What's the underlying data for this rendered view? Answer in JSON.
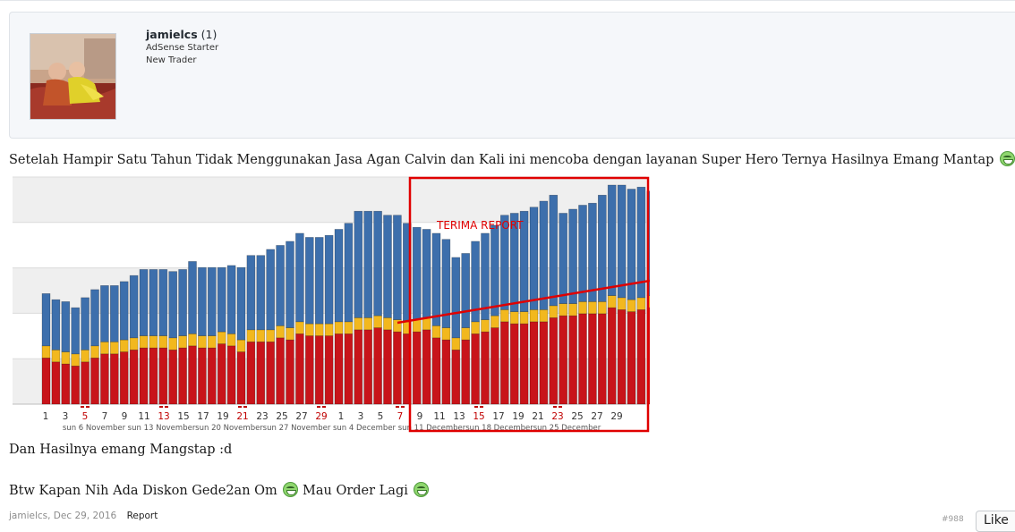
{
  "author": {
    "username": "jamielcs",
    "post_count": "(1)",
    "titles": [
      "AdSense Starter",
      "New Trader"
    ]
  },
  "message": {
    "line1": "Setelah Hampir Satu Tahun Tidak Menggunakan Jasa Agan Calvin dan Kali ini mencoba dengan layanan Super Hero Ternya Hasilnya Emang Mantap",
    "line2": "Dan Hasilnya emang Mangstap :d",
    "line3_a": "Btw Kapan Nih Ada Diskon Gede2an Om",
    "line3_b": "Mau Order Lagi",
    "emoji_icon": "grin-emoji-icon"
  },
  "chart_data": {
    "type": "bar",
    "stacked": true,
    "annotation": "TERIMA REPORT",
    "x_tick_labels": [
      "1",
      "3",
      "5",
      "7",
      "9",
      "11",
      "13",
      "15",
      "17",
      "19",
      "21",
      "23",
      "25",
      "27",
      "29",
      "1",
      "3",
      "5",
      "7",
      "9",
      "11",
      "13",
      "15",
      "17",
      "19",
      "21",
      "23",
      "25",
      "27",
      "29"
    ],
    "red_tick_labels": [
      "5",
      "13",
      "19",
      "27",
      "3",
      "11",
      "17",
      "25"
    ],
    "week_labels": [
      "sun 6 November",
      "sun 13 November",
      "sun 20 November",
      "sun 27 November",
      "sun 4 December",
      "sun 11 December",
      "sun 18 December",
      "sun 25 December"
    ],
    "series": [
      {
        "color": "#c8141a",
        "values": [
          23,
          21,
          20,
          19,
          21,
          23,
          25,
          25,
          26,
          27,
          28,
          28,
          28,
          27,
          28,
          29,
          28,
          28,
          30,
          29,
          26,
          31,
          31,
          31,
          33,
          32,
          35,
          34,
          34,
          34,
          35,
          35,
          37,
          37,
          38,
          37,
          36,
          35,
          36,
          37,
          33,
          32,
          27,
          32,
          35,
          36,
          38,
          41,
          40,
          40,
          41,
          41,
          43,
          44,
          44,
          45,
          45,
          45,
          48,
          47,
          46,
          47,
          48,
          48,
          47,
          46,
          47,
          48,
          47,
          47,
          48,
          52
        ]
      },
      {
        "color": "#f2b81e",
        "values": [
          6,
          6,
          6,
          6,
          6,
          6,
          6,
          6,
          6,
          6,
          6,
          6,
          6,
          6,
          6,
          6,
          6,
          6,
          6,
          6,
          6,
          6,
          6,
          6,
          6,
          6,
          6,
          6,
          6,
          6,
          6,
          6,
          6,
          6,
          6,
          6,
          6,
          6,
          6,
          6,
          6,
          6,
          6,
          6,
          6,
          6,
          6,
          6,
          6,
          6,
          6,
          6,
          6,
          6,
          6,
          6,
          6,
          6,
          6,
          6,
          6,
          6,
          6,
          6,
          6,
          6,
          6,
          6,
          6,
          6,
          6,
          6
        ]
      },
      {
        "color": "#3d6fac",
        "values": [
          26,
          25,
          25,
          23,
          26,
          28,
          28,
          28,
          29,
          31,
          33,
          33,
          33,
          33,
          33,
          36,
          34,
          34,
          32,
          34,
          36,
          37,
          37,
          40,
          40,
          43,
          44,
          43,
          43,
          44,
          46,
          49,
          53,
          53,
          52,
          51,
          52,
          49,
          46,
          44,
          46,
          44,
          40,
          37,
          40,
          43,
          45,
          47,
          49,
          50,
          51,
          54,
          55,
          45,
          47,
          48,
          49,
          53,
          55,
          56,
          55,
          55,
          52,
          51,
          52,
          50,
          51,
          50,
          49,
          51,
          54,
          51
        ]
      }
    ],
    "ylim": [
      0,
      113
    ],
    "grid": true
  }
}
